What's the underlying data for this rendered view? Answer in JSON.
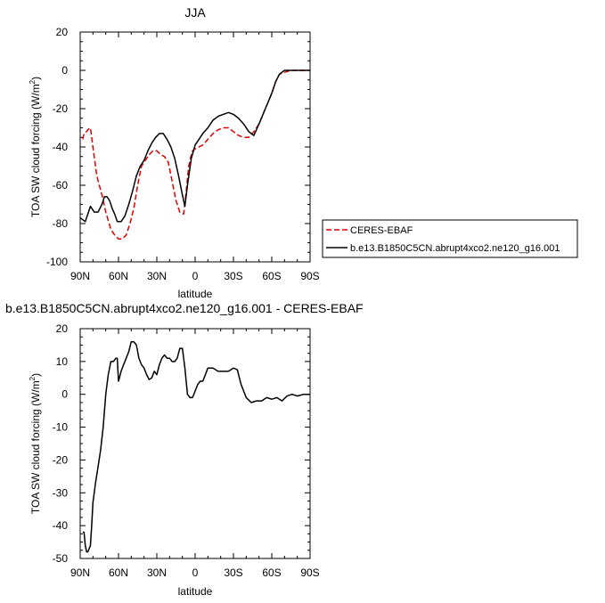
{
  "chart_data": [
    {
      "type": "line",
      "title": "JJA",
      "xlabel": "latitude",
      "ylabel": "TOA SW cloud forcing (W/m",
      "ylabel_sup": "2",
      "ylabel_end": ")",
      "xlim": [
        90,
        -90
      ],
      "ylim": [
        -100,
        20
      ],
      "xticks": [
        {
          "value": 90,
          "label": "90N"
        },
        {
          "value": 60,
          "label": "60N"
        },
        {
          "value": 30,
          "label": "30N"
        },
        {
          "value": 0,
          "label": "0"
        },
        {
          "value": -30,
          "label": "30S"
        },
        {
          "value": -60,
          "label": "60S"
        },
        {
          "value": -90,
          "label": "90S"
        }
      ],
      "yticks": [
        {
          "value": 20,
          "label": "20"
        },
        {
          "value": 0,
          "label": "0"
        },
        {
          "value": -20,
          "label": "-20"
        },
        {
          "value": -40,
          "label": "-40"
        },
        {
          "value": -60,
          "label": "-60"
        },
        {
          "value": -80,
          "label": "-80"
        },
        {
          "value": -100,
          "label": "-100"
        }
      ],
      "legend_position": "outside-right",
      "series": [
        {
          "name": "CERES-EBAF",
          "color": "#e00000",
          "dash": "dashed",
          "x": [
            88,
            87,
            85,
            84,
            82,
            80,
            77,
            73,
            70,
            66,
            63,
            60,
            57,
            54,
            51,
            48,
            45,
            42,
            39,
            36,
            33,
            30,
            27,
            24,
            21,
            18,
            15,
            12,
            9,
            7,
            5,
            3,
            2,
            0,
            -3,
            -6,
            -10,
            -14,
            -18,
            -22,
            -26,
            -30,
            -34,
            -38,
            -42,
            -46,
            -50,
            -55,
            -60,
            -63,
            -66,
            -70,
            -75,
            -80,
            -85,
            -90
          ],
          "y": [
            -36,
            -33,
            -32,
            -31,
            -30,
            -40,
            -55,
            -65,
            -74,
            -83,
            -86,
            -88,
            -88,
            -86,
            -80,
            -72,
            -60,
            -50,
            -47,
            -44,
            -42,
            -42,
            -44,
            -45,
            -48,
            -58,
            -68,
            -74,
            -75,
            -63,
            -50,
            -44,
            -42,
            -41,
            -40,
            -39,
            -36,
            -33,
            -31,
            -30,
            -30,
            -32,
            -34,
            -35,
            -35,
            -32,
            -28,
            -20,
            -12,
            -6,
            -2,
            -1,
            0,
            0,
            0,
            0
          ]
        },
        {
          "name": "b.e13.B1850C5CN.abrupt4xco2.ne120_g16.001",
          "color": "#000000",
          "dash": "solid",
          "x": [
            90,
            88,
            86,
            84,
            82,
            79,
            76,
            73,
            71,
            69,
            67,
            65,
            63,
            61,
            58,
            55,
            52,
            49,
            46,
            43,
            40,
            37,
            34,
            31,
            28,
            25,
            22,
            19,
            16,
            13,
            10,
            8,
            6,
            3,
            0,
            -3,
            -6,
            -10,
            -14,
            -18,
            -22,
            -26,
            -30,
            -34,
            -38,
            -42,
            -46,
            -50,
            -55,
            -60,
            -63,
            -66,
            -70,
            -75,
            -80,
            -85,
            -90
          ],
          "y": [
            -77,
            -78,
            -79,
            -75,
            -71,
            -74,
            -74,
            -70,
            -66,
            -66,
            -68,
            -72,
            -75,
            -79,
            -79,
            -76,
            -70,
            -63,
            -55,
            -50,
            -47,
            -42,
            -38,
            -35,
            -33,
            -33,
            -36,
            -40,
            -46,
            -55,
            -65,
            -71,
            -60,
            -46,
            -39,
            -36,
            -33,
            -30,
            -26,
            -24,
            -23,
            -22,
            -23,
            -25,
            -28,
            -32,
            -34,
            -28,
            -20,
            -12,
            -6,
            -2,
            0,
            0,
            0,
            0,
            0
          ]
        }
      ]
    },
    {
      "type": "line",
      "title": "b.e13.B1850C5CN.abrupt4xco2.ne120_g16.001 - CERES-EBAF",
      "xlabel": "latitude",
      "ylabel": "TOA SW cloud forcing (W/m",
      "ylabel_sup": "2",
      "ylabel_end": ")",
      "xlim": [
        90,
        -90
      ],
      "ylim": [
        -50,
        20
      ],
      "xticks": [
        {
          "value": 90,
          "label": "90N"
        },
        {
          "value": 60,
          "label": "60N"
        },
        {
          "value": 30,
          "label": "30N"
        },
        {
          "value": 0,
          "label": "0"
        },
        {
          "value": -30,
          "label": "30S"
        },
        {
          "value": -60,
          "label": "60S"
        },
        {
          "value": -90,
          "label": "90S"
        }
      ],
      "yticks": [
        {
          "value": 20,
          "label": "20"
        },
        {
          "value": 10,
          "label": "10"
        },
        {
          "value": 0,
          "label": "0"
        },
        {
          "value": -10,
          "label": "-10"
        },
        {
          "value": -20,
          "label": "-20"
        },
        {
          "value": -30,
          "label": "-30"
        },
        {
          "value": -40,
          "label": "-40"
        },
        {
          "value": -50,
          "label": "-50"
        }
      ],
      "series": [
        {
          "color": "#000000",
          "dash": "solid",
          "x": [
            88,
            87,
            86,
            85,
            84,
            82,
            81,
            80,
            78,
            76,
            74,
            72,
            70,
            68,
            66,
            64,
            62,
            61,
            60,
            58,
            56,
            54,
            52,
            50,
            48,
            46,
            44,
            42,
            40,
            38,
            36,
            34,
            32,
            30,
            28,
            26,
            24,
            22,
            20,
            18,
            16,
            14,
            12,
            10,
            8,
            6,
            4,
            2,
            0,
            -2,
            -4,
            -6,
            -8,
            -10,
            -14,
            -18,
            -22,
            -26,
            -30,
            -33,
            -36,
            -40,
            -44,
            -48,
            -52,
            -56,
            -60,
            -64,
            -68,
            -72,
            -76,
            -80,
            -85,
            -90
          ],
          "y": [
            -42,
            -42,
            -46,
            -48,
            -48,
            -46,
            -40,
            -33,
            -27,
            -22,
            -17,
            -10,
            0,
            6,
            10,
            10,
            11,
            11,
            4,
            7,
            9,
            11,
            13,
            16,
            16,
            15,
            11,
            9,
            8,
            6,
            4.5,
            5,
            7,
            6,
            9,
            11,
            12,
            11,
            11,
            10,
            10,
            11,
            14,
            14,
            8,
            0,
            -1,
            -1,
            1,
            3,
            4,
            4,
            6,
            8,
            8,
            7,
            7,
            7,
            8,
            7.5,
            3,
            -1,
            -2.5,
            -2,
            -2,
            -1,
            -1.5,
            -1,
            -2,
            -0.5,
            0,
            -0.5,
            0,
            0
          ]
        }
      ]
    }
  ]
}
